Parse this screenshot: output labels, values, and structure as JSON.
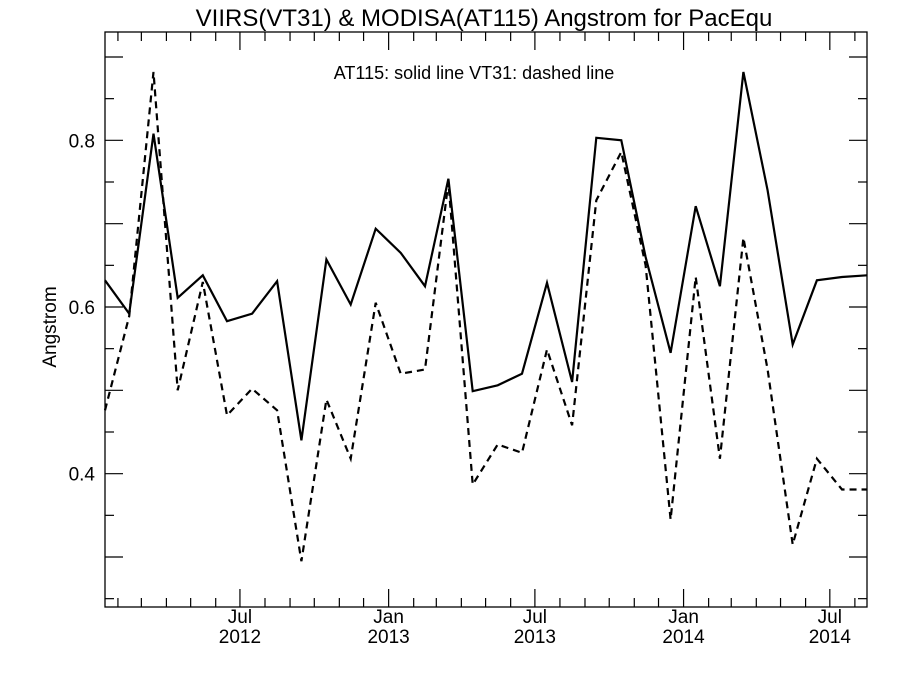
{
  "chart_data": {
    "type": "line",
    "title": "VIIRS(VT31) & MODISA(AT115)  Angstrom for PacEqu",
    "ylabel": "Angstrom",
    "xlabel": "",
    "annotation": "AT115: solid line   VT31: dashed line",
    "xlim": [
      "2012-01-16",
      "2014-08-16"
    ],
    "ylim": [
      0.24,
      0.93
    ],
    "ytick_values": [
      0.4,
      0.6,
      0.8
    ],
    "ytick_labels": [
      "0.4",
      "0.6",
      "0.8"
    ],
    "xticks": [
      {
        "date": "2012-07-01",
        "month": "Jul",
        "year": "2012"
      },
      {
        "date": "2013-01-01",
        "month": "Jan",
        "year": "2013"
      },
      {
        "date": "2013-07-01",
        "month": "Jul",
        "year": "2013"
      },
      {
        "date": "2014-01-01",
        "month": "Jan",
        "year": "2014"
      },
      {
        "date": "2014-07-01",
        "month": "Jul",
        "year": "2014"
      }
    ],
    "x": [
      "2012-01-16",
      "2012-02-15",
      "2012-03-16",
      "2012-04-15",
      "2012-05-16",
      "2012-06-15",
      "2012-07-16",
      "2012-08-16",
      "2012-09-15",
      "2012-10-16",
      "2012-11-15",
      "2012-12-16",
      "2013-01-16",
      "2013-02-15",
      "2013-03-16",
      "2013-04-15",
      "2013-05-16",
      "2013-06-15",
      "2013-07-16",
      "2013-08-16",
      "2013-09-15",
      "2013-10-16",
      "2013-11-15",
      "2013-12-16",
      "2014-01-16",
      "2014-02-15",
      "2014-03-16",
      "2014-04-15",
      "2014-05-16",
      "2014-06-15",
      "2014-07-16",
      "2014-08-16"
    ],
    "series": [
      {
        "name": "AT115",
        "style": "solid",
        "values": [
          0.632,
          0.592,
          0.808,
          0.611,
          0.638,
          0.583,
          0.592,
          0.631,
          0.44,
          0.657,
          0.603,
          0.694,
          0.665,
          0.625,
          0.754,
          0.499,
          0.506,
          0.52,
          0.629,
          0.51,
          0.803,
          0.8,
          0.66,
          0.545,
          0.721,
          0.625,
          0.882,
          0.74,
          0.555,
          0.632,
          0.636,
          0.638
        ]
      },
      {
        "name": "VT31",
        "style": "dashed",
        "values": [
          0.476,
          0.589,
          0.882,
          0.5,
          0.63,
          0.47,
          0.502,
          0.476,
          0.295,
          0.489,
          0.418,
          0.605,
          0.52,
          0.525,
          0.75,
          0.387,
          0.435,
          0.425,
          0.549,
          0.458,
          0.728,
          0.786,
          0.65,
          0.345,
          0.636,
          0.418,
          0.683,
          0.525,
          0.315,
          0.418,
          0.381,
          0.381
        ]
      }
    ]
  }
}
